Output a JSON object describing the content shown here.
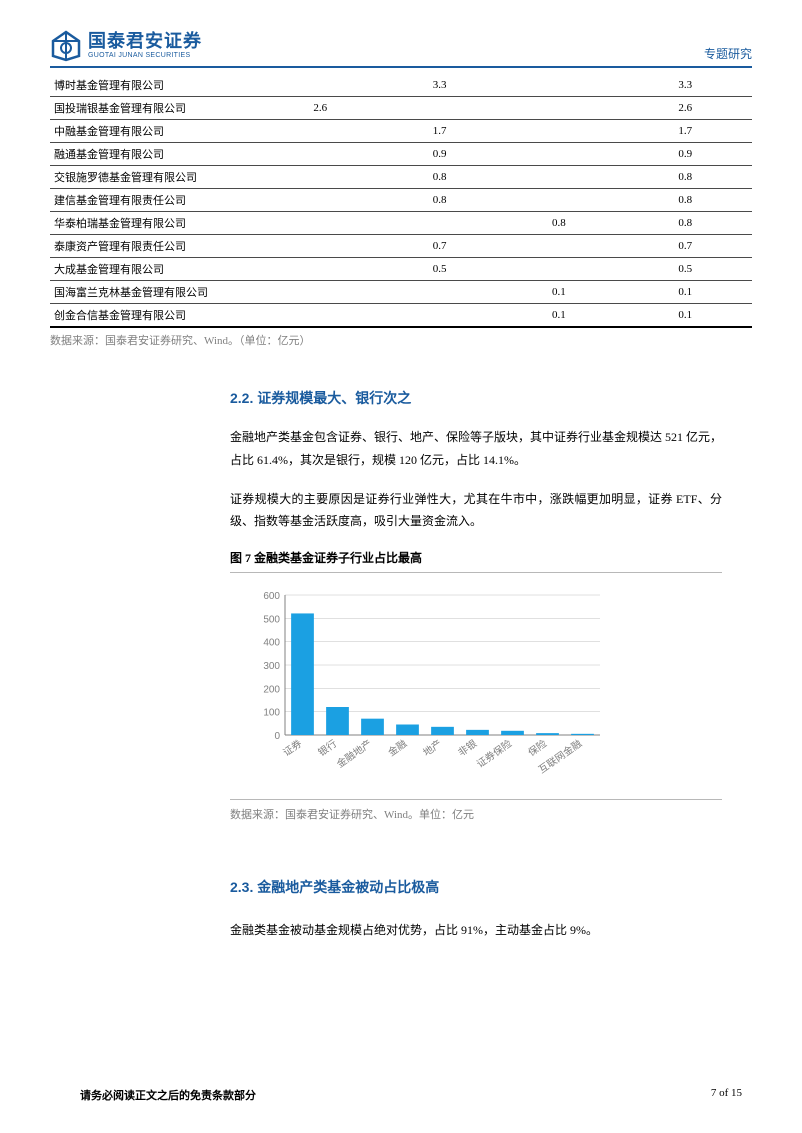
{
  "header": {
    "logo_cn": "国泰君安证券",
    "logo_en": "GUOTAI JUNAN SECURITIES",
    "right": "专题研究"
  },
  "table": {
    "rows": [
      {
        "name": "博时基金管理有限公司",
        "v1": "",
        "v2": "3.3",
        "v3": "",
        "tot": "3.3"
      },
      {
        "name": "国投瑞银基金管理有限公司",
        "v1": "2.6",
        "v2": "",
        "v3": "",
        "tot": "2.6"
      },
      {
        "name": "中融基金管理有限公司",
        "v1": "",
        "v2": "1.7",
        "v3": "",
        "tot": "1.7"
      },
      {
        "name": "融通基金管理有限公司",
        "v1": "",
        "v2": "0.9",
        "v3": "",
        "tot": "0.9"
      },
      {
        "name": "交银施罗德基金管理有限公司",
        "v1": "",
        "v2": "0.8",
        "v3": "",
        "tot": "0.8"
      },
      {
        "name": "建信基金管理有限责任公司",
        "v1": "",
        "v2": "0.8",
        "v3": "",
        "tot": "0.8"
      },
      {
        "name": "华泰柏瑞基金管理有限公司",
        "v1": "",
        "v2": "",
        "v3": "0.8",
        "tot": "0.8"
      },
      {
        "name": "泰康资产管理有限责任公司",
        "v1": "",
        "v2": "0.7",
        "v3": "",
        "tot": "0.7"
      },
      {
        "name": "大成基金管理有限公司",
        "v1": "",
        "v2": "0.5",
        "v3": "",
        "tot": "0.5"
      },
      {
        "name": "国海富兰克林基金管理有限公司",
        "v1": "",
        "v2": "",
        "v3": "0.1",
        "tot": "0.1"
      },
      {
        "name": "创金合信基金管理有限公司",
        "v1": "",
        "v2": "",
        "v3": "0.1",
        "tot": "0.1"
      }
    ],
    "source": "数据来源：国泰君安证券研究、Wind。（单位：亿元）"
  },
  "section22": {
    "heading": "2.2.  证券规模最大、银行次之",
    "p1": "金融地产类基金包含证券、银行、地产、保险等子版块，其中证券行业基金规模达 521 亿元，占比 61.4%，其次是银行，规模 120 亿元，占比 14.1%。",
    "p2": "证券规模大的主要原因是证券行业弹性大，尤其在牛市中，涨跌幅更加明显，证券 ETF、分级、指数等基金活跃度高，吸引大量资金流入。"
  },
  "figure7": {
    "title": "图 7 金融类基金证券子行业占比最高",
    "type": "bar",
    "categories": [
      "证券",
      "银行",
      "金融地产",
      "金融",
      "地产",
      "非银",
      "证券保险",
      "保险",
      "互联网金融"
    ],
    "values": [
      521,
      120,
      70,
      45,
      35,
      22,
      18,
      8,
      5
    ],
    "bar_color": "#1ba0e2",
    "ylim": [
      0,
      600
    ],
    "ytick_step": 100,
    "grid_color": "#c0c0c0",
    "axis_color": "#808080",
    "text_color": "#808080",
    "source": "数据来源：国泰君安证券研究、Wind。单位：亿元"
  },
  "section23": {
    "heading": "2.3.  金融地产类基金被动占比极高",
    "p1": "金融类基金被动基金规模占绝对优势，占比 91%，主动基金占比 9%。"
  },
  "footer": {
    "left": "请务必阅读正文之后的免责条款部分",
    "right": "7 of 15"
  }
}
